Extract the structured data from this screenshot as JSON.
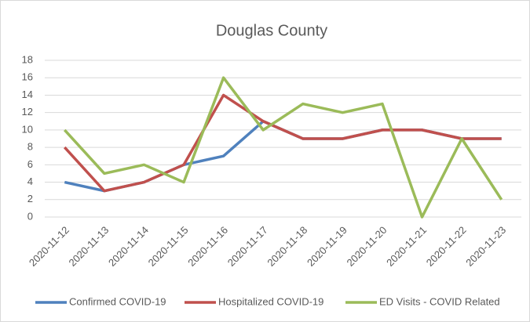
{
  "chart_data": {
    "type": "line",
    "title": "Douglas County",
    "categories": [
      "2020-11-12",
      "2020-11-13",
      "2020-11-14",
      "2020-11-15",
      "2020-11-16",
      "2020-11-17",
      "2020-11-18",
      "2020-11-19",
      "2020-11-20",
      "2020-11-21",
      "2020-11-22",
      "2020-11-23"
    ],
    "series": [
      {
        "name": "Confirmed COVID-19",
        "color": "#4f81bd",
        "values": [
          4,
          3,
          4,
          6,
          7,
          11,
          9,
          9,
          10,
          10,
          9,
          9
        ]
      },
      {
        "name": "Hospitalized COVID-19",
        "color": "#c0504d",
        "values": [
          8,
          3,
          4,
          6,
          14,
          11,
          9,
          9,
          10,
          10,
          9,
          9
        ]
      },
      {
        "name": "ED Visits - COVID Related",
        "color": "#9bbb59",
        "values": [
          10,
          5,
          6,
          4,
          16,
          10,
          13,
          12,
          13,
          0,
          9,
          2
        ]
      }
    ],
    "ylim": [
      0,
      18
    ],
    "yticks": [
      0,
      2,
      4,
      6,
      8,
      10,
      12,
      14,
      16,
      18
    ],
    "grid": true,
    "legend": "bottom"
  }
}
